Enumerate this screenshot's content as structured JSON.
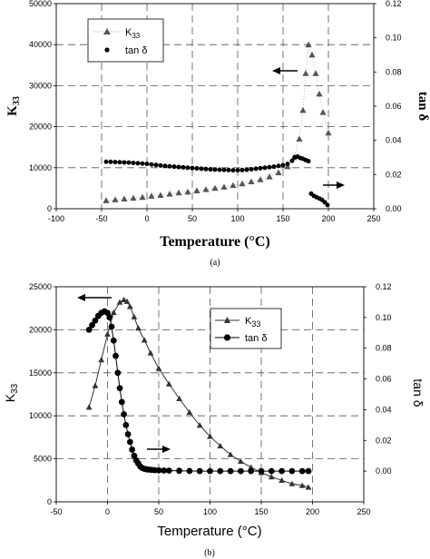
{
  "chart_data": [
    {
      "panel": "(a)",
      "type": "scatter",
      "xlabel": "Temperature (°C)",
      "ylabel": "K33",
      "y2label": "tan δ",
      "xlim": [
        -100,
        250
      ],
      "ylim": [
        0,
        50000
      ],
      "y2lim": [
        0,
        0.12
      ],
      "xticks": [
        -100,
        -50,
        0,
        50,
        100,
        150,
        200,
        250
      ],
      "yticks": [
        0,
        10000,
        20000,
        30000,
        40000,
        50000
      ],
      "y2ticks": [
        0,
        0.02,
        0.04,
        0.06,
        0.08,
        0.1,
        0.12
      ],
      "y2tick_labels": [
        "0.00",
        "0.02",
        "0.04",
        "0.06",
        "0.08",
        "0.10",
        "0.12"
      ],
      "grid": true,
      "legend_position": "top-left",
      "series": [
        {
          "name": "K33",
          "axis": "left",
          "marker": "triangle",
          "color": "#555555",
          "x": [
            -45,
            -35,
            -25,
            -15,
            -5,
            5,
            15,
            25,
            35,
            45,
            55,
            65,
            75,
            85,
            95,
            105,
            115,
            125,
            135,
            145,
            155,
            162,
            168,
            172,
            175,
            178,
            182,
            186,
            190,
            194,
            200
          ],
          "y": [
            2000,
            2200,
            2400,
            2600,
            2800,
            3100,
            3300,
            3600,
            3900,
            4100,
            4400,
            4700,
            5000,
            5300,
            5700,
            6100,
            6600,
            7100,
            7800,
            8800,
            10300,
            12500,
            17000,
            24000,
            33000,
            40000,
            37500,
            33000,
            28000,
            23500,
            18500
          ]
        },
        {
          "name": "tan δ",
          "axis": "right",
          "marker": "circle",
          "color": "#000000",
          "x": [
            -45,
            -40,
            -35,
            -30,
            -25,
            -20,
            -15,
            -10,
            -5,
            0,
            5,
            10,
            15,
            20,
            25,
            30,
            35,
            40,
            45,
            50,
            55,
            60,
            65,
            70,
            75,
            80,
            85,
            90,
            95,
            100,
            105,
            110,
            115,
            120,
            125,
            130,
            135,
            140,
            145,
            150,
            155,
            160,
            163,
            166,
            169,
            172,
            175,
            178,
            181,
            184,
            187,
            190,
            193,
            196,
            199
          ],
          "y": [
            0.0275,
            0.0274,
            0.0273,
            0.0272,
            0.0271,
            0.027,
            0.0268,
            0.0266,
            0.0264,
            0.0262,
            0.0259,
            0.0256,
            0.0253,
            0.025,
            0.0248,
            0.0246,
            0.0244,
            0.0242,
            0.024,
            0.0238,
            0.0236,
            0.0234,
            0.0232,
            0.023,
            0.0229,
            0.0228,
            0.0227,
            0.0226,
            0.0225,
            0.0225,
            0.0226,
            0.0228,
            0.0231,
            0.0234,
            0.0237,
            0.024,
            0.0243,
            0.0246,
            0.025,
            0.0254,
            0.0262,
            0.028,
            0.0302,
            0.0305,
            0.0297,
            0.0292,
            0.0285,
            0.0278,
            0.0088,
            0.0075,
            0.0067,
            0.006,
            0.0052,
            0.0038,
            0.0022
          ]
        }
      ]
    },
    {
      "panel": "(b)",
      "type": "line",
      "xlabel": "Temperature (°C)",
      "ylabel": "K33",
      "y2label": "tan δ",
      "xlim": [
        -50,
        250
      ],
      "ylim": [
        0,
        25000
      ],
      "y2lim": [
        -0.02,
        0.12
      ],
      "xticks": [
        -50,
        0,
        50,
        100,
        150,
        200,
        250
      ],
      "yticks": [
        0,
        5000,
        10000,
        15000,
        20000,
        25000
      ],
      "y2ticks": [
        0,
        0.02,
        0.04,
        0.06,
        0.08,
        0.1,
        0.12
      ],
      "y2tick_labels": [
        "0.00",
        "0.02",
        "0.04",
        "0.06",
        "0.08",
        "0.10",
        "0.12"
      ],
      "grid": true,
      "legend_position": "top-right",
      "series": [
        {
          "name": "K33",
          "axis": "left",
          "marker": "triangle",
          "color": "#333333",
          "x": [
            -18,
            -12,
            -6,
            0,
            6,
            12,
            16,
            19,
            22,
            26,
            30,
            36,
            42,
            50,
            60,
            70,
            80,
            90,
            100,
            110,
            120,
            130,
            140,
            150,
            160,
            170,
            180,
            190,
            196
          ],
          "y": [
            11000,
            13500,
            16500,
            19500,
            22000,
            23200,
            23500,
            23300,
            22700,
            21500,
            20200,
            18800,
            17300,
            15500,
            13700,
            12000,
            10400,
            8900,
            7600,
            6500,
            5500,
            4700,
            4000,
            3400,
            2900,
            2500,
            2100,
            1900,
            1700
          ]
        },
        {
          "name": "tan δ",
          "axis": "right",
          "marker": "circle",
          "color": "#000000",
          "x": [
            -18,
            -15,
            -12,
            -9,
            -6,
            -3,
            0,
            2,
            4,
            6,
            8,
            10,
            12,
            14,
            16,
            18,
            20,
            22,
            24,
            26,
            28,
            30,
            32,
            34,
            36,
            38,
            40,
            43,
            46,
            50,
            55,
            60,
            70,
            80,
            90,
            100,
            110,
            120,
            130,
            140,
            150,
            160,
            170,
            180,
            190,
            196
          ],
          "y": [
            0.092,
            0.095,
            0.098,
            0.101,
            0.103,
            0.104,
            0.103,
            0.1,
            0.094,
            0.085,
            0.075,
            0.064,
            0.054,
            0.045,
            0.037,
            0.03,
            0.024,
            0.019,
            0.014,
            0.01,
            0.007,
            0.005,
            0.003,
            0.002,
            0.0015,
            0.0012,
            0.001,
            0.0008,
            0.0006,
            0.0005,
            0.0004,
            0.0003,
            0.0002,
            0.0001,
            0.0,
            0.0,
            0.0,
            0.0,
            0.0,
            0.0,
            0.0,
            0.0,
            0.0,
            0.0,
            0.0,
            0.0
          ]
        }
      ]
    }
  ],
  "panels": {
    "a": {
      "caption": "(a)",
      "xlabel": "Temperature (°C)",
      "ylabel_main": "K",
      "ylabel_sub": "33",
      "y2label": "tan δ",
      "legend": {
        "k33_main": "K",
        "k33_sub": "33",
        "tan": "tan δ"
      }
    },
    "b": {
      "caption": "(b)",
      "xlabel": "Temperature (°C)",
      "ylabel_main": "K",
      "ylabel_sub": "33",
      "y2label": "tan δ",
      "legend": {
        "k33_main": "K",
        "k33_sub": "33",
        "tan": "tan δ"
      }
    }
  }
}
